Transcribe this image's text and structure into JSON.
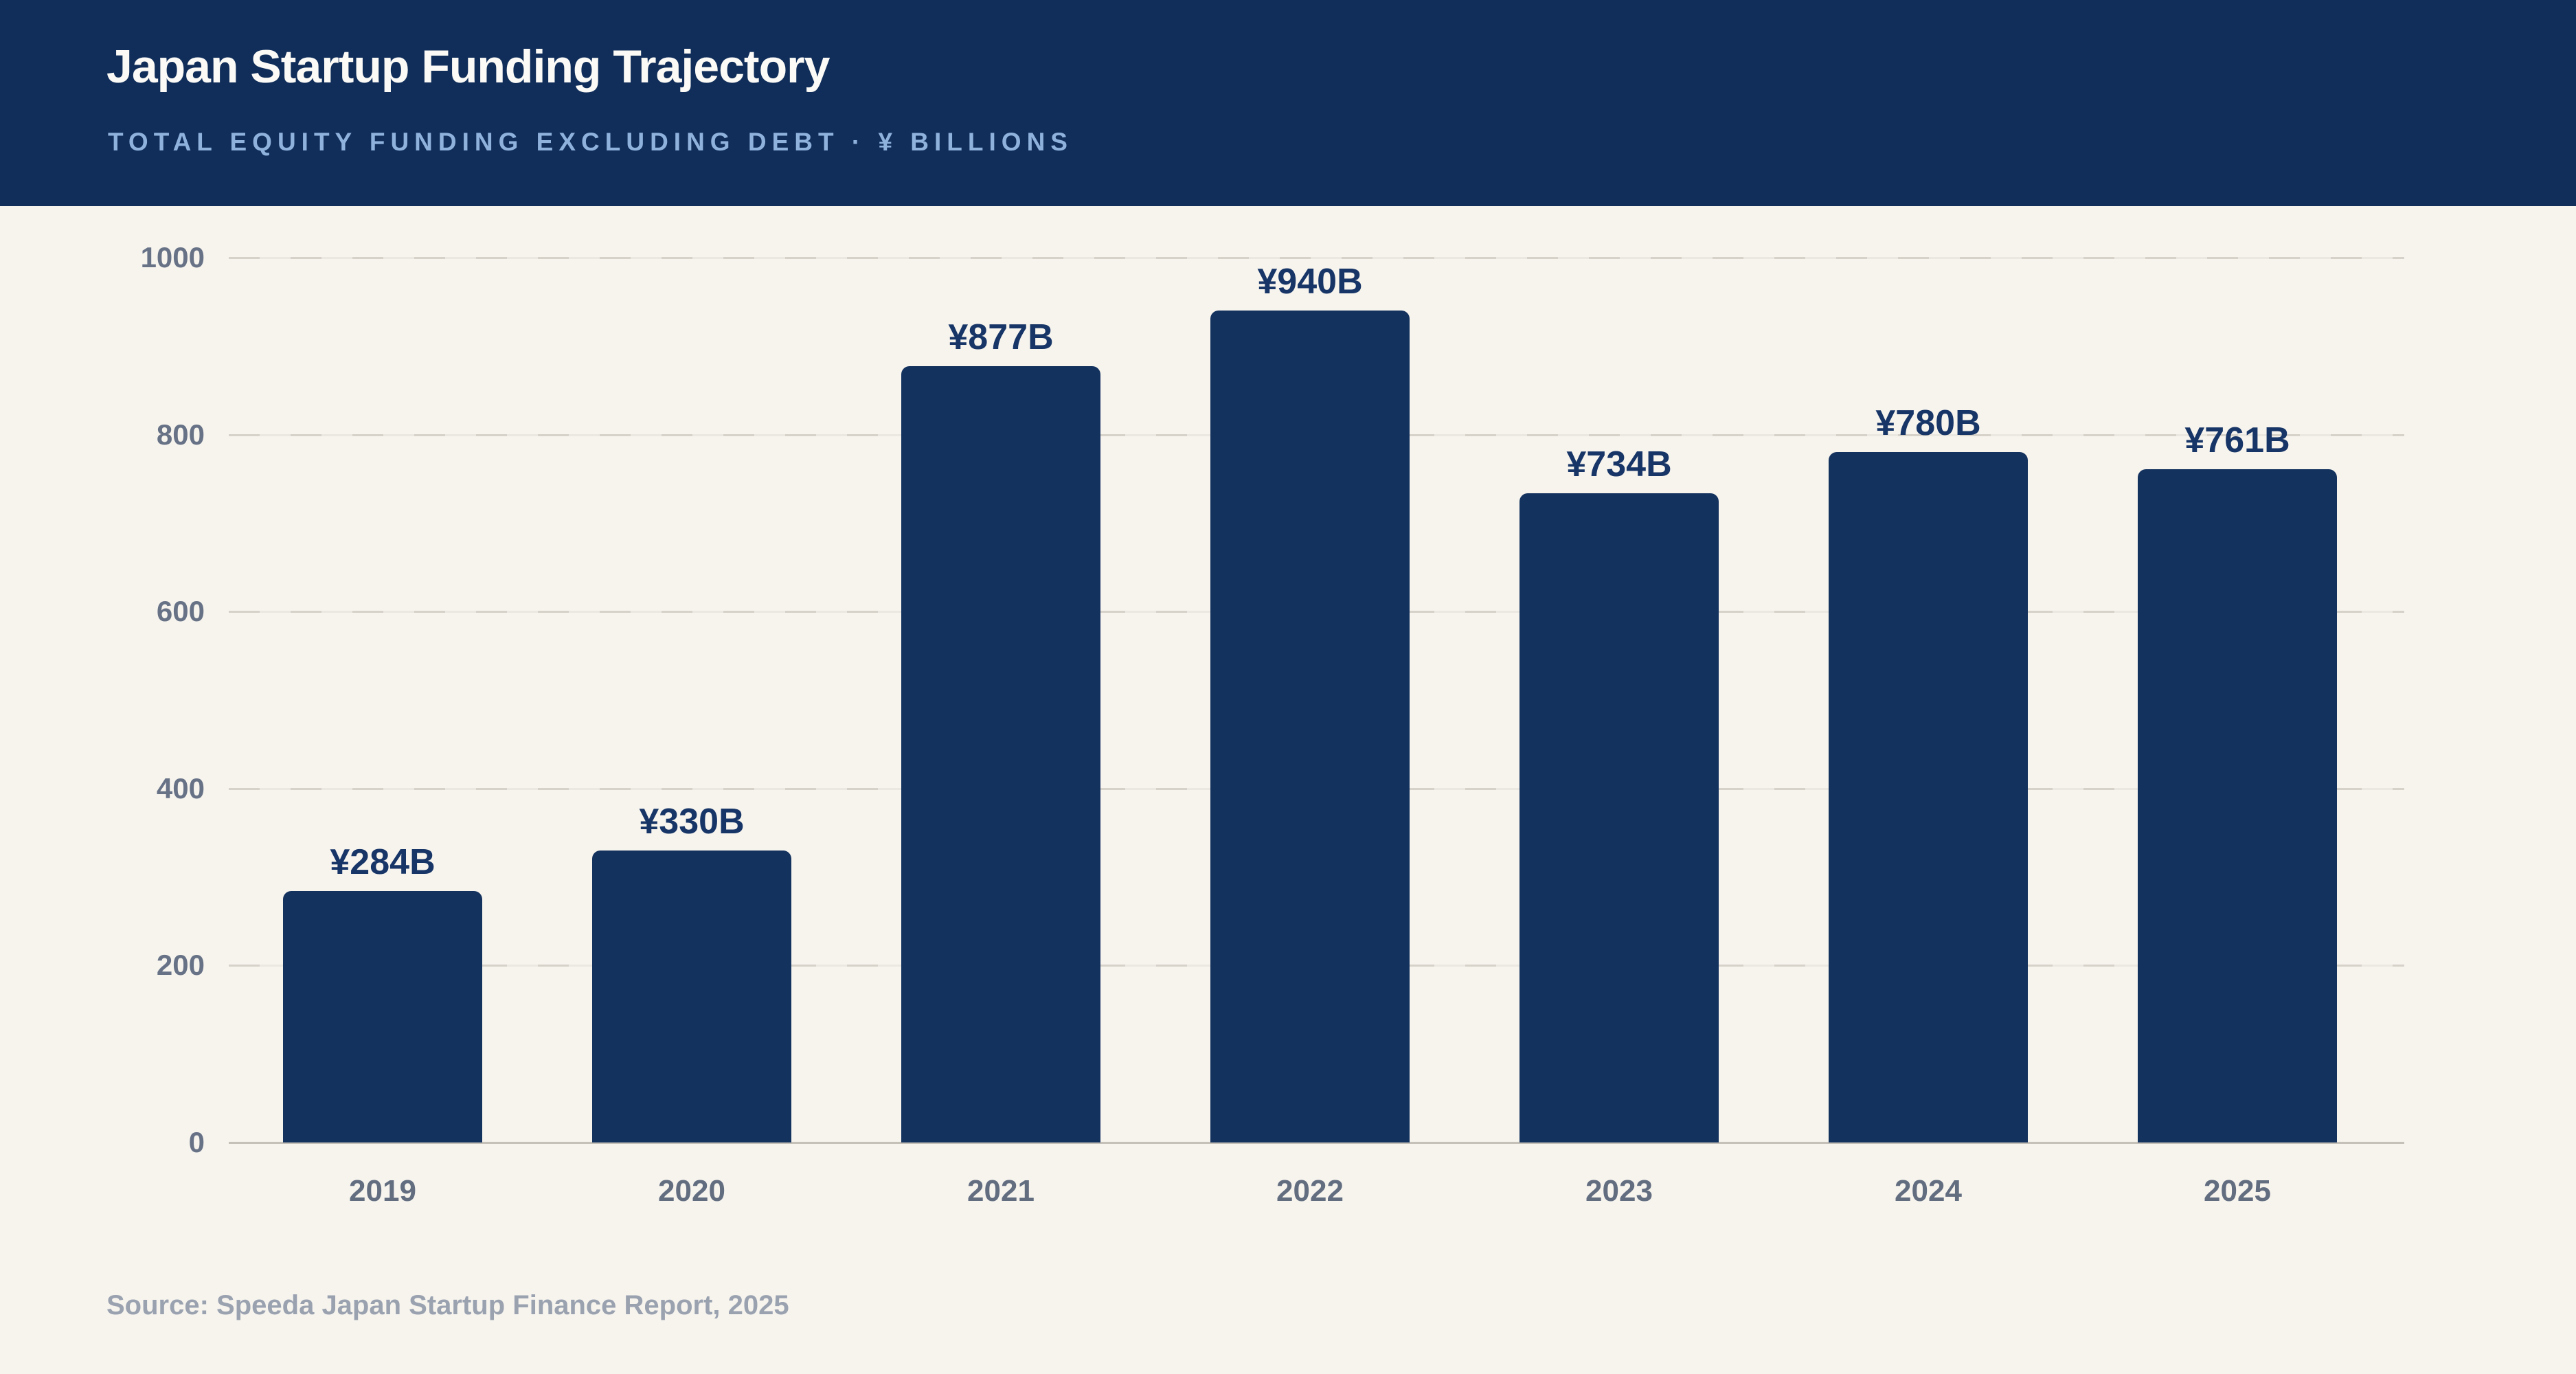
{
  "header": {
    "title": "Japan Startup Funding Trajectory",
    "subtitle": "TOTAL EQUITY FUNDING EXCLUDING DEBT · ¥ BILLIONS"
  },
  "footer": {
    "source": "Source: Speeda Japan Startup Finance Report, 2025"
  },
  "colors": {
    "header_bg": "#112e5a",
    "title_text": "#fbfaf6",
    "subtitle_text": "#8fb2dc",
    "page_bg": "#f7f4ee",
    "bar": "#14325e",
    "value_label": "#173566",
    "axis_label": "#677286",
    "gridline": "#d6d2c9",
    "baseline": "#c6c1b8",
    "source_text": "#9aa2b0"
  },
  "chart_data": {
    "type": "bar",
    "title": "Japan Startup Funding Trajectory",
    "subtitle": "TOTAL EQUITY FUNDING EXCLUDING DEBT · ¥ BILLIONS",
    "categories": [
      "2019",
      "2020",
      "2021",
      "2022",
      "2023",
      "2024",
      "2025"
    ],
    "values": [
      284,
      330,
      877,
      940,
      734,
      780,
      761
    ],
    "value_labels": [
      "¥284B",
      "¥330B",
      "¥877B",
      "¥940B",
      "¥734B",
      "¥780B",
      "¥761B"
    ],
    "xlabel": "",
    "ylabel": "",
    "ylim": [
      0,
      1000
    ],
    "yticks": [
      0,
      200,
      400,
      600,
      800,
      1000
    ],
    "grid": "horizontal-dashed",
    "legend": "none",
    "source": "Source: Speeda Japan Startup Finance Report, 2025"
  }
}
